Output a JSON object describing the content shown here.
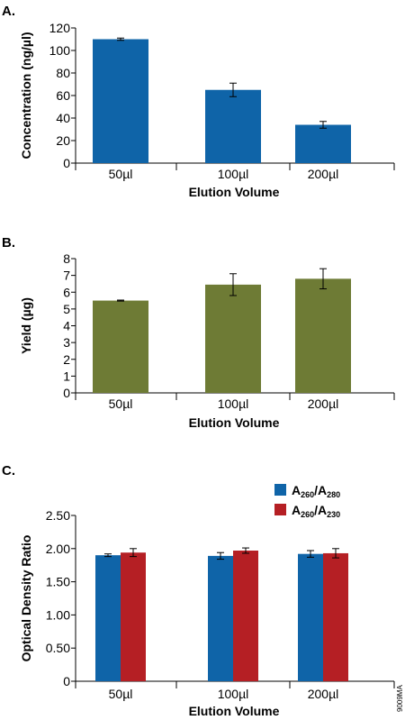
{
  "figure_code": "9009MA",
  "colors": {
    "blue": "#0f64a8",
    "olive": "#6e7b35",
    "red": "#b51f24"
  },
  "chart_data": [
    {
      "panel": "A.",
      "type": "bar",
      "categories": [
        "50µl",
        "100µl",
        "200µl"
      ],
      "xlabel": "Elution Volume",
      "ylabel": "Concentration (ng/µl)",
      "ylim": [
        0,
        120
      ],
      "yticks": [
        "0",
        "20",
        "40",
        "60",
        "80",
        "100",
        "120"
      ],
      "series": [
        {
          "values": [
            110,
            65,
            34
          ],
          "errors": [
            1,
            6,
            3
          ],
          "color": "#0f64a8"
        }
      ],
      "grid": false
    },
    {
      "panel": "B.",
      "type": "bar",
      "categories": [
        "50µl",
        "100µl",
        "200µl"
      ],
      "xlabel": "Elution Volume",
      "ylabel": "Yield (µg)",
      "ylim": [
        0,
        8
      ],
      "yticks": [
        "0",
        "1",
        "2",
        "3",
        "4",
        "5",
        "6",
        "7",
        "8"
      ],
      "series": [
        {
          "values": [
            5.5,
            6.45,
            6.8
          ],
          "errors": [
            0.03,
            0.65,
            0.6
          ],
          "color": "#6e7b35"
        }
      ],
      "grid": false
    },
    {
      "panel": "C.",
      "type": "bar",
      "categories": [
        "50µl",
        "100µl",
        "200µl"
      ],
      "xlabel": "Elution Volume",
      "ylabel": "Optical Density Ratio",
      "ylim": [
        0,
        2.5
      ],
      "yticks": [
        "0",
        "0.50",
        "1.00",
        "1.50",
        "2.00",
        "2.50"
      ],
      "legend_position": "top-right",
      "series": [
        {
          "name": "A260/A280",
          "name_main": "A",
          "name_sub1": "260",
          "name_sep": "/A",
          "name_sub2": "280",
          "values": [
            1.9,
            1.89,
            1.92
          ],
          "errors": [
            0.02,
            0.05,
            0.05
          ],
          "color": "#0f64a8"
        },
        {
          "name": "A260/A230",
          "name_main": "A",
          "name_sub1": "260",
          "name_sep": "/A",
          "name_sub2": "230",
          "values": [
            1.94,
            1.97,
            1.93
          ],
          "errors": [
            0.06,
            0.04,
            0.07
          ],
          "color": "#b51f24"
        }
      ],
      "grid": false
    }
  ]
}
